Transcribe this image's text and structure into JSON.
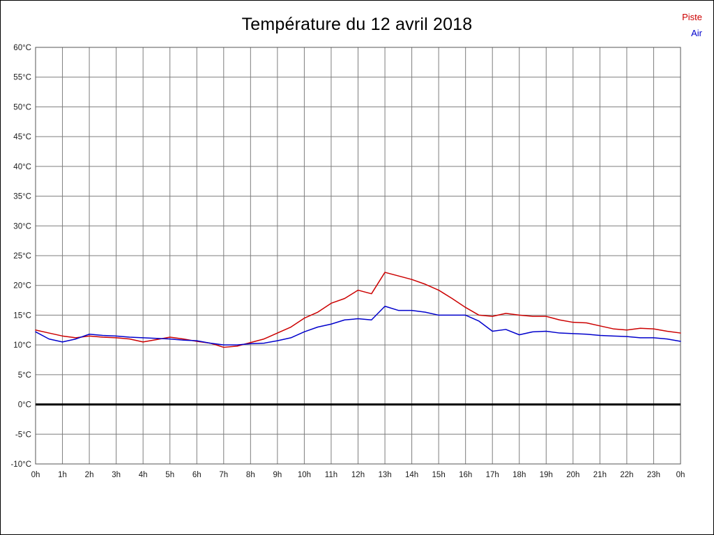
{
  "title": "Température du 12 avril 2018",
  "legend": [
    {
      "label": "Piste",
      "color": "#cc0000"
    },
    {
      "label": "Air",
      "color": "#0000cc"
    }
  ],
  "colors": {
    "grid": "#7d7d7d",
    "frame": "#555555",
    "zero_line": "#000000",
    "background": "#ffffff",
    "border": "#000000"
  },
  "chart_data": {
    "type": "line",
    "title": "Température du 12 avril 2018",
    "xlabel": "",
    "ylabel": "",
    "xlim": [
      0,
      24
    ],
    "ylim": [
      -10,
      60
    ],
    "grid": true,
    "legend_position": "top-right",
    "y_tick_step": 5,
    "x_tick_step": 1,
    "y_tick_labels": [
      "60°C",
      "55°C",
      "50°C",
      "45°C",
      "40°C",
      "35°C",
      "30°C",
      "25°C",
      "20°C",
      "15°C",
      "10°C",
      "5°C",
      "0°C",
      "-5°C",
      "-10°C"
    ],
    "x_tick_labels": [
      "0h",
      "1h",
      "2h",
      "3h",
      "4h",
      "5h",
      "6h",
      "7h",
      "8h",
      "9h",
      "10h",
      "11h",
      "12h",
      "13h",
      "14h",
      "15h",
      "16h",
      "17h",
      "18h",
      "19h",
      "20h",
      "21h",
      "22h",
      "23h",
      "0h"
    ],
    "zero_line": {
      "value": 0,
      "width": 3
    },
    "x": [
      0,
      0.5,
      1,
      1.5,
      2,
      2.5,
      3,
      3.5,
      4,
      4.5,
      5,
      5.5,
      6,
      6.5,
      7,
      7.5,
      8,
      8.5,
      9,
      9.5,
      10,
      10.5,
      11,
      11.5,
      12,
      12.5,
      13,
      13.5,
      14,
      14.5,
      15,
      15.5,
      16,
      16.5,
      17,
      17.5,
      18,
      18.5,
      19,
      19.5,
      20,
      20.5,
      21,
      21.5,
      22,
      22.5,
      23,
      23.5,
      24
    ],
    "series": [
      {
        "name": "Piste",
        "color": "#cc0000",
        "values": [
          12.5,
          12.0,
          11.5,
          11.2,
          11.5,
          11.3,
          11.2,
          11.0,
          10.5,
          10.9,
          11.3,
          11.0,
          10.6,
          10.3,
          9.6,
          9.8,
          10.4,
          11.0,
          12.0,
          13.0,
          14.5,
          15.5,
          17.0,
          17.8,
          19.2,
          18.6,
          22.2,
          21.6,
          21.0,
          20.2,
          19.2,
          17.8,
          16.3,
          15.0,
          14.8,
          15.3,
          15.0,
          14.8,
          14.8,
          14.2,
          13.8,
          13.7,
          13.2,
          12.7,
          12.5,
          12.8,
          12.7,
          12.3,
          12.0
        ]
      },
      {
        "name": "Air",
        "color": "#0000cc",
        "values": [
          12.2,
          11.0,
          10.5,
          11.0,
          11.8,
          11.6,
          11.5,
          11.3,
          11.2,
          11.1,
          11.0,
          10.8,
          10.7,
          10.3,
          10.0,
          10.0,
          10.2,
          10.3,
          10.7,
          11.2,
          12.2,
          13.0,
          13.5,
          14.2,
          14.4,
          14.2,
          16.5,
          15.8,
          15.8,
          15.5,
          15.0,
          15.0,
          15.0,
          14.0,
          12.3,
          12.6,
          11.7,
          12.2,
          12.3,
          12.0,
          11.9,
          11.8,
          11.6,
          11.5,
          11.4,
          11.2,
          11.2,
          11.0,
          10.6
        ]
      }
    ]
  }
}
